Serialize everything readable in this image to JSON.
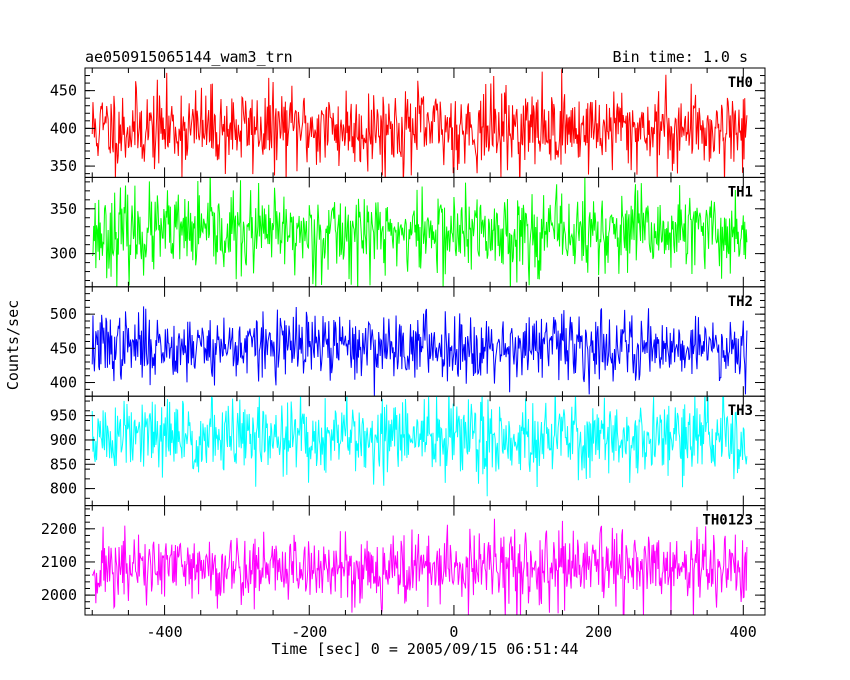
{
  "chart_data": {
    "type": "line",
    "title_left": "ae050915065144_wam3_trn",
    "title_right": "Bin time: 1.0 s",
    "xlabel": "Time [sec] 0 = 2005/09/15 06:51:44",
    "ylabel": "Counts/sec",
    "xlim": [
      -510,
      430
    ],
    "x_range": [
      -500,
      405
    ],
    "x_step": 1,
    "x_ticks": [
      -400,
      -200,
      0,
      200,
      400
    ],
    "panels": [
      {
        "name": "TH0",
        "color": "#ff0000",
        "mean": 400,
        "spread": 27,
        "seed": 11,
        "ylim": [
          335,
          480
        ],
        "yticks": [
          350,
          400,
          450
        ]
      },
      {
        "name": "TH1",
        "color": "#00ff00",
        "mean": 323,
        "spread": 23,
        "seed": 23,
        "ylim": [
          263,
          385
        ],
        "yticks": [
          300,
          350
        ]
      },
      {
        "name": "TH2",
        "color": "#0000ff",
        "mean": 453,
        "spread": 24,
        "seed": 37,
        "ylim": [
          380,
          540
        ],
        "yticks": [
          400,
          450,
          500
        ]
      },
      {
        "name": "TH3",
        "color": "#00ffff",
        "mean": 905,
        "spread": 40,
        "seed": 51,
        "ylim": [
          765,
          990
        ],
        "yticks": [
          800,
          850,
          900,
          950
        ]
      },
      {
        "name": "TH0123",
        "color": "#ff00ff",
        "mean": 2080,
        "spread": 55,
        "seed": 71,
        "ylim": [
          1940,
          2270
        ],
        "yticks": [
          2000,
          2100,
          2200
        ]
      }
    ]
  }
}
